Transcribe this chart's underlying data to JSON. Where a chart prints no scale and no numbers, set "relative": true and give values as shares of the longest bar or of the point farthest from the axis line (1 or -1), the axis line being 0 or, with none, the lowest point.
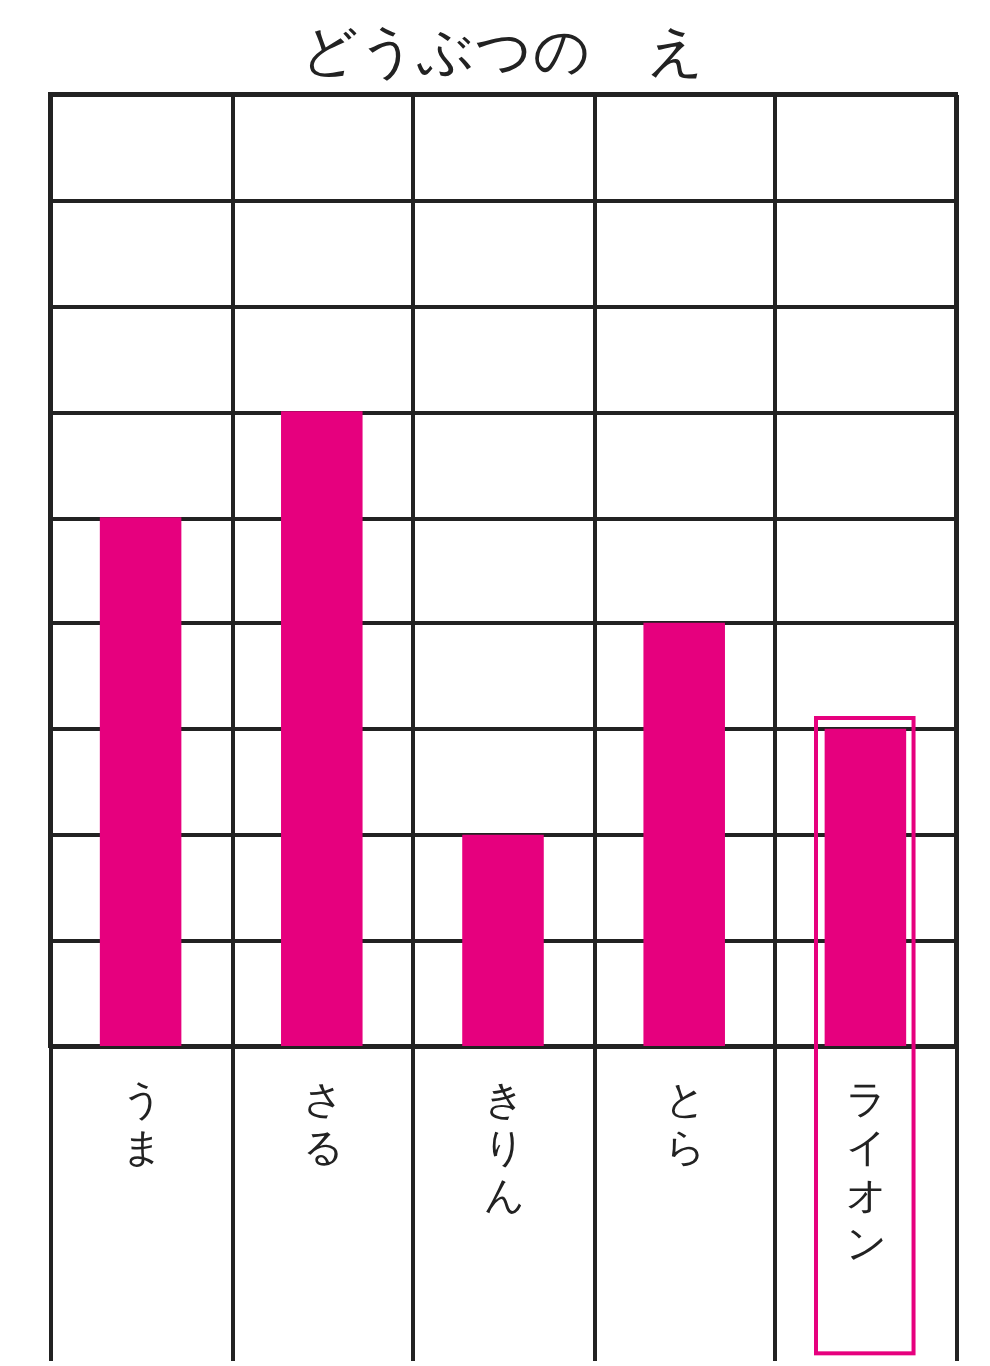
{
  "chart_data": {
    "type": "bar",
    "title": "どうぶつの　え",
    "categories": [
      "うま",
      "さる",
      "きりん",
      "とら",
      "ライオン"
    ],
    "values": [
      0.833,
      1,
      0.333,
      0.667,
      0.5
    ],
    "color": "#e6007e",
    "relative": true,
    "grid": true
  }
}
